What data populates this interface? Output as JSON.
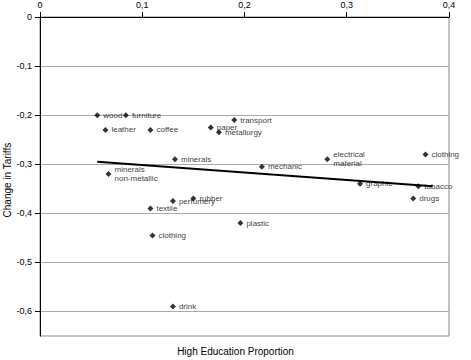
{
  "chart_data": {
    "type": "scatter",
    "x_label": "High Education Proportion",
    "y_label": "Change in Tariffs",
    "labels": [
      "wood",
      "furniture",
      "leather",
      "coffee",
      "transport",
      "paper",
      "metallurgy",
      "minerals",
      "electrical\nmaterial",
      "clothing",
      "mechanic",
      "graphic",
      "tabacco",
      "drugs",
      "minerals\nnon-metallic",
      "rubber",
      "perfumery",
      "textile",
      "plastic",
      "clothing",
      "drink"
    ],
    "x": [
      0.056,
      0.084,
      0.064,
      0.108,
      0.19,
      0.167,
      0.175,
      0.132,
      0.281,
      0.377,
      0.217,
      0.313,
      0.37,
      0.365,
      0.067,
      0.15,
      0.13,
      0.108,
      0.196,
      0.11,
      0.13
    ],
    "values": [
      -0.2,
      -0.2,
      -0.23,
      -0.23,
      -0.21,
      -0.225,
      -0.235,
      -0.29,
      -0.29,
      -0.28,
      -0.305,
      -0.34,
      -0.345,
      -0.37,
      -0.32,
      -0.37,
      -0.375,
      -0.39,
      -0.42,
      -0.445,
      -0.59
    ],
    "color": "#000000",
    "marker": "diamond",
    "trend": {
      "x": [
        0.056,
        0.384
      ],
      "values": [
        -0.295,
        -0.345
      ],
      "color": "#000000",
      "line_style": "solid"
    },
    "xlim": [
      0,
      0.4
    ],
    "xticks": [
      0,
      {
        "value": 0.1,
        "label": "0,1"
      },
      {
        "value": 0.2,
        "label": "0,2"
      },
      {
        "value": 0.3,
        "label": "0,3"
      },
      {
        "value": 0.4,
        "label": "0,4"
      }
    ],
    "ylim": [
      -0.65,
      0
    ],
    "yticks": [
      0,
      {
        "value": -0.1,
        "label": "-0,1"
      },
      {
        "value": -0.2,
        "label": "-0,2"
      },
      {
        "value": -0.3,
        "label": "-0,3"
      },
      {
        "value": -0.4,
        "label": "-0,4"
      },
      {
        "value": -0.5,
        "label": "-0,5"
      },
      {
        "value": -0.6,
        "label": "-0,6"
      }
    ],
    "grid": true
  }
}
